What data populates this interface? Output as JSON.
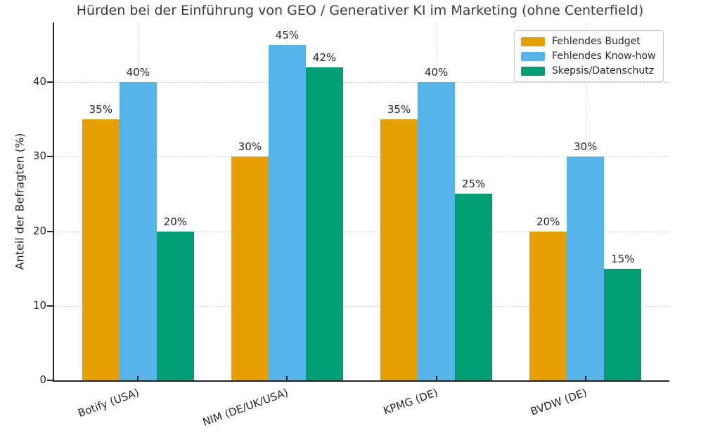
{
  "title": "Hürden bei der Einführung von GEO / Generativer KI im Marketing (ohne Centerfield)",
  "chart_data": {
    "type": "bar",
    "title": "Hürden bei der Einführung von GEO / Generativer KI im Marketing (ohne Centerfield)",
    "categories": [
      "Botify (USA)",
      "NIM (DE/UK/USA)",
      "KPMG (DE)",
      "BVDW (DE)"
    ],
    "series": [
      {
        "name": "Fehlendes Budget",
        "color": "#E69F00",
        "values": [
          35,
          30,
          35,
          20
        ]
      },
      {
        "name": "Fehlendes Know-how",
        "color": "#56B4E9",
        "values": [
          40,
          45,
          40,
          30
        ]
      },
      {
        "name": "Skepsis/Datenschutz",
        "color": "#009E73",
        "values": [
          20,
          42,
          25,
          15
        ]
      }
    ],
    "data_labels": [
      "35%",
      "40%",
      "20%",
      "30%",
      "45%",
      "42%",
      "35%",
      "40%",
      "25%",
      "20%",
      "30%",
      "15%"
    ],
    "value_suffix": "%",
    "xlabel": "",
    "ylabel": "Anteil der Befragten (%)",
    "ylim": [
      0,
      48
    ],
    "yticks": [
      0,
      10,
      20,
      30,
      40
    ],
    "grid": "dashed horizontal and vertical",
    "legend_position": "top-right",
    "colors": {
      "text": "#262626",
      "title_text": "#3a3a3a",
      "grid": "#cfcfcf",
      "axis": "#262626",
      "background": "#ffffff"
    }
  }
}
